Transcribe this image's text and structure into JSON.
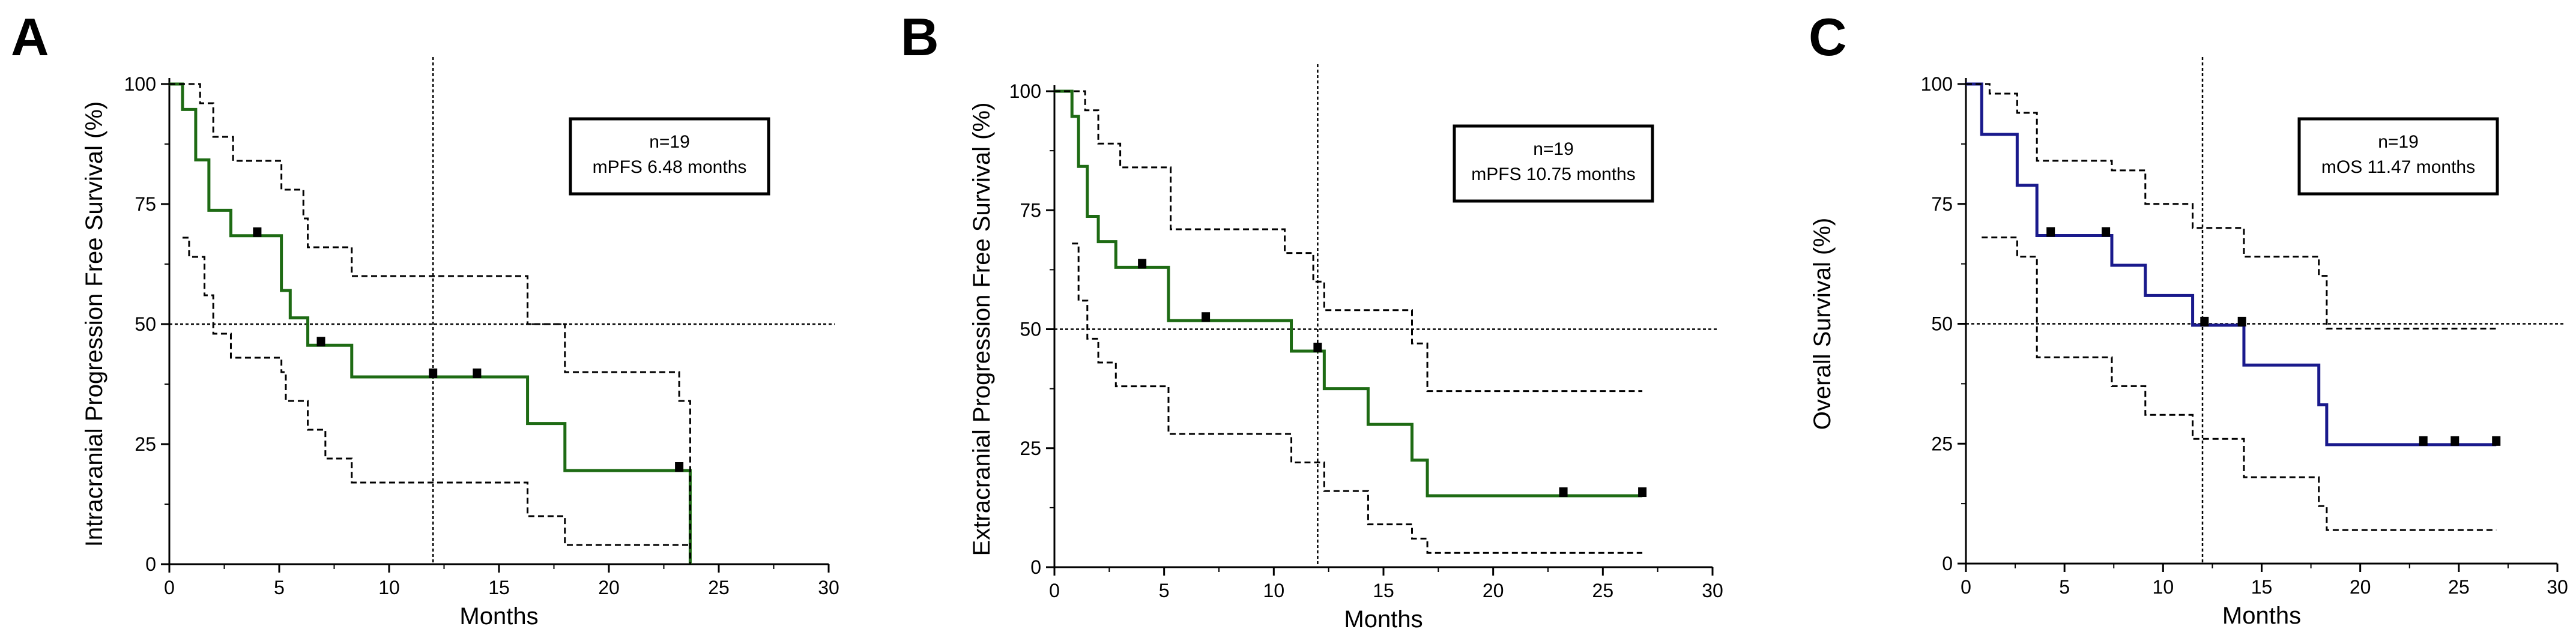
{
  "figure": {
    "panels": [
      "A",
      "B",
      "C"
    ]
  },
  "chart_data": [
    {
      "panel": "A",
      "type": "line",
      "subtype": "kaplan-meier",
      "title": "",
      "xlabel": "Months",
      "ylabel": "Intracranial Progression Free Survival (%)",
      "xlim": [
        0,
        30
      ],
      "ylim": [
        0,
        100
      ],
      "xticks": [
        0,
        5,
        10,
        15,
        20,
        25,
        30
      ],
      "yticks": [
        0,
        25,
        50,
        75,
        100
      ],
      "grid": false,
      "reference_lines": {
        "x": 12,
        "y": 50
      },
      "legend": {
        "placement": "top-right",
        "lines": [
          "n=19",
          "mPFS 6.48 months"
        ]
      },
      "curve_color": "#1e6b14",
      "series": [
        {
          "role": "estimate",
          "x": [
            0,
            0.6,
            1.2,
            1.8,
            2.8,
            5.1,
            5.5,
            6.3,
            6.5,
            8.3,
            16.3,
            18.0,
            23.7,
            23.7
          ],
          "y": [
            100,
            94.7,
            84.2,
            73.7,
            68.4,
            57.0,
            51.3,
            45.6,
            45.6,
            39.0,
            29.3,
            19.5,
            19.5,
            0
          ]
        },
        {
          "role": "upper_ci",
          "x": [
            0,
            1.4,
            2.0,
            2.9,
            5.1,
            6.1,
            6.3,
            8.3,
            16.3,
            18.0,
            23.2,
            23.7
          ],
          "y": [
            100,
            96,
            89,
            84,
            78,
            72,
            66,
            60,
            50,
            40,
            34,
            0
          ]
        },
        {
          "role": "lower_ci",
          "x": [
            0.6,
            0.9,
            1.6,
            2.0,
            2.8,
            5.1,
            5.3,
            6.3,
            7.1,
            8.3,
            16.3,
            18.0,
            23.7
          ],
          "y": [
            68,
            64,
            56,
            48,
            43,
            40,
            34,
            28,
            22,
            17,
            10,
            4,
            4
          ]
        }
      ],
      "censored": {
        "x": [
          4.0,
          6.9,
          12.0,
          14.0,
          23.2
        ],
        "y": [
          68.4,
          45.6,
          39.0,
          39.0,
          19.5
        ]
      }
    },
    {
      "panel": "B",
      "type": "line",
      "subtype": "kaplan-meier",
      "title": "",
      "xlabel": "Months",
      "ylabel": "Extracranial Progression Free Survival (%)",
      "xlim": [
        0,
        30
      ],
      "ylim": [
        0,
        100
      ],
      "xticks": [
        0,
        5,
        10,
        15,
        20,
        25,
        30
      ],
      "yticks": [
        0,
        25,
        50,
        75,
        100
      ],
      "grid": false,
      "reference_lines": {
        "x": 12,
        "y": 50
      },
      "legend": {
        "placement": "top-right",
        "lines": [
          "n=19",
          "mPFS 10.75 months"
        ]
      },
      "curve_color": "#1e6b14",
      "series": [
        {
          "role": "estimate",
          "x": [
            0,
            0.8,
            1.1,
            1.5,
            2.0,
            2.8,
            5.2,
            10.8,
            12.3,
            14.3,
            16.3,
            17.0,
            26.8
          ],
          "y": [
            100,
            94.7,
            84.2,
            73.7,
            68.4,
            63.0,
            51.8,
            45.4,
            37.5,
            30.0,
            22.5,
            15.0,
            15.0
          ]
        },
        {
          "role": "upper_ci",
          "x": [
            0,
            1.4,
            2.0,
            3.0,
            5.3,
            10.5,
            11.8,
            12.3,
            16.3,
            17.0,
            26.8
          ],
          "y": [
            100,
            96,
            89,
            84,
            71,
            66,
            60,
            54,
            47,
            37,
            37
          ]
        },
        {
          "role": "lower_ci",
          "x": [
            0.8,
            1.1,
            1.5,
            2.0,
            2.8,
            5.2,
            10.8,
            12.3,
            14.3,
            16.3,
            17.0,
            26.8
          ],
          "y": [
            68,
            56,
            48,
            43,
            38,
            28,
            22,
            16,
            9,
            6,
            3,
            3
          ]
        }
      ],
      "censored": {
        "x": [
          4.0,
          6.9,
          12.0,
          23.2,
          26.8
        ],
        "y": [
          63.0,
          51.8,
          45.4,
          15.0,
          15.0
        ]
      }
    },
    {
      "panel": "C",
      "type": "line",
      "subtype": "kaplan-meier",
      "title": "",
      "xlabel": "Months",
      "ylabel": "Overall Survival (%)",
      "xlim": [
        0,
        30
      ],
      "ylim": [
        0,
        100
      ],
      "xticks": [
        0,
        5,
        10,
        15,
        20,
        25,
        30
      ],
      "yticks": [
        0,
        25,
        50,
        75,
        100
      ],
      "grid": false,
      "reference_lines": {
        "x": 12,
        "y": 50
      },
      "legend": {
        "placement": "top-right",
        "lines": [
          "n=19",
          "mOS 11.47 months"
        ]
      },
      "curve_color": "#1a1a8c",
      "series": [
        {
          "role": "estimate",
          "x": [
            0,
            0.8,
            2.6,
            3.6,
            7.4,
            9.1,
            11.5,
            14.1,
            17.9,
            18.3,
            26.9
          ],
          "y": [
            100,
            89.5,
            78.9,
            68.4,
            62.2,
            55.9,
            49.7,
            41.4,
            33.1,
            24.8,
            24.8
          ]
        },
        {
          "role": "upper_ci",
          "x": [
            0,
            1.2,
            2.6,
            3.6,
            7.4,
            9.1,
            11.5,
            14.1,
            17.9,
            18.3,
            26.9
          ],
          "y": [
            100,
            98,
            94,
            84,
            82,
            75,
            70,
            64,
            60,
            49,
            49
          ]
        },
        {
          "role": "lower_ci",
          "x": [
            0.8,
            2.6,
            3.6,
            7.4,
            9.1,
            11.5,
            14.1,
            17.9,
            18.3,
            26.9
          ],
          "y": [
            68,
            64,
            43,
            37,
            31,
            26,
            18,
            12,
            7,
            7
          ]
        }
      ],
      "censored": {
        "x": [
          4.3,
          7.1,
          12.1,
          14.0,
          23.2,
          24.8,
          26.9
        ],
        "y": [
          68.4,
          68.4,
          49.7,
          49.7,
          24.8,
          24.8,
          24.8
        ]
      }
    }
  ]
}
